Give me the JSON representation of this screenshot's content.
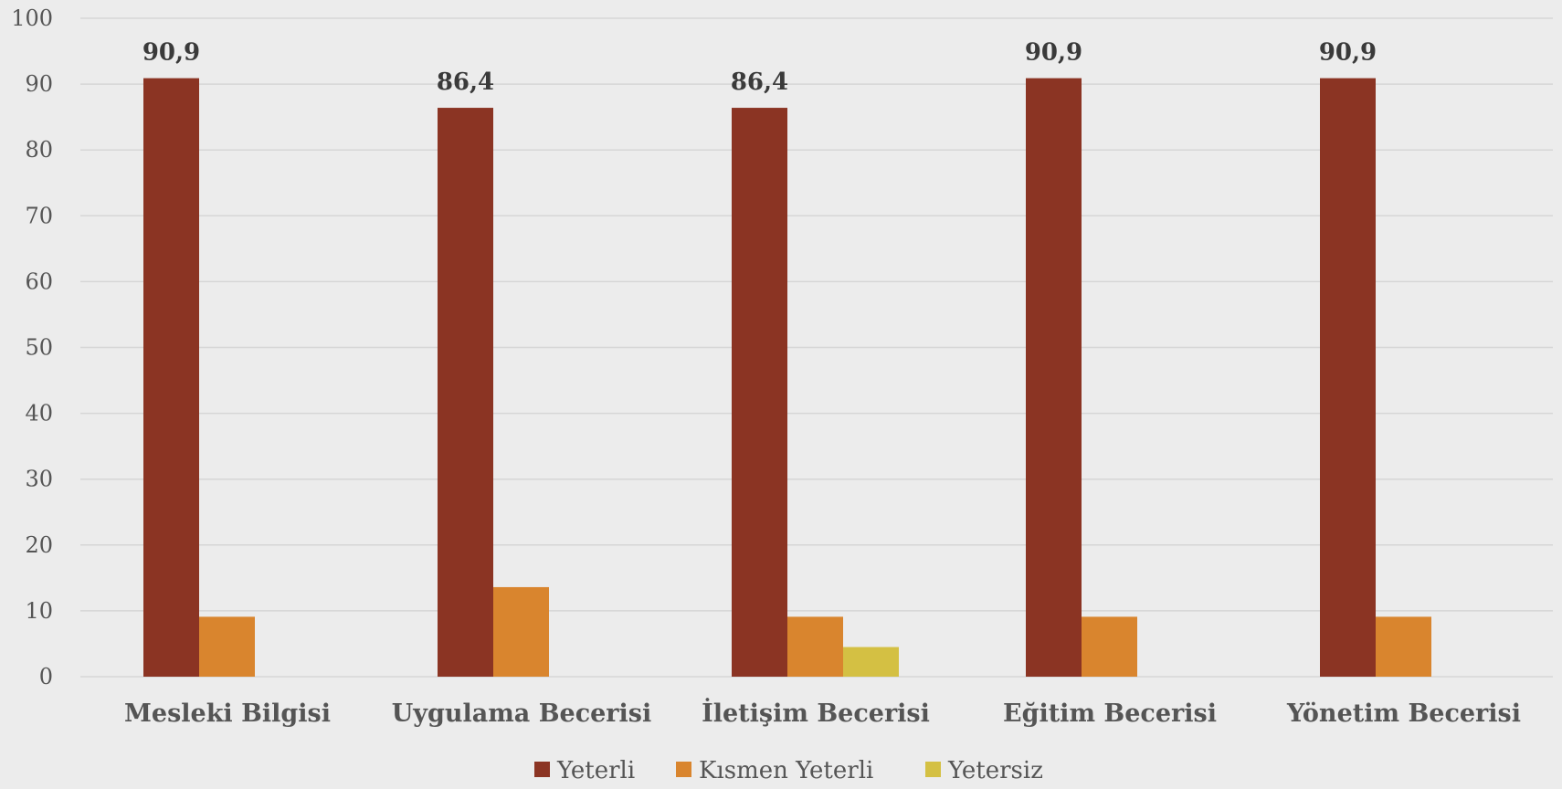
{
  "chart_data": {
    "type": "bar",
    "categories": [
      "Mesleki Bilgisi",
      "Uygulama Becerisi",
      "İletişim Becerisi",
      "Eğitim Becerisi",
      "Yönetim Becerisi"
    ],
    "series": [
      {
        "name": "Yeterli",
        "color": "#8b3423",
        "values": [
          90.9,
          86.4,
          86.4,
          90.9,
          90.9
        ]
      },
      {
        "name": "Kısmen Yeterli",
        "color": "#d9852e",
        "values": [
          9.1,
          13.6,
          9.1,
          9.1,
          9.1
        ]
      },
      {
        "name": "Yetersiz",
        "color": "#d4c043",
        "values": [
          0,
          0,
          4.5,
          0,
          0
        ]
      }
    ],
    "data_labels": [
      {
        "category_index": 0,
        "series_index": 0,
        "text": "90,9"
      },
      {
        "category_index": 1,
        "series_index": 0,
        "text": "86,4"
      },
      {
        "category_index": 2,
        "series_index": 0,
        "text": "86,4"
      },
      {
        "category_index": 3,
        "series_index": 0,
        "text": "90,9"
      },
      {
        "category_index": 4,
        "series_index": 0,
        "text": "90,9"
      }
    ],
    "ylim": [
      0,
      100
    ],
    "yticks": [
      "0",
      "10",
      "20",
      "30",
      "40",
      "50",
      "60",
      "70",
      "80",
      "90",
      "100"
    ],
    "grid": true,
    "legend_position": "bottom",
    "title": "",
    "xlabel": "",
    "ylabel": ""
  }
}
